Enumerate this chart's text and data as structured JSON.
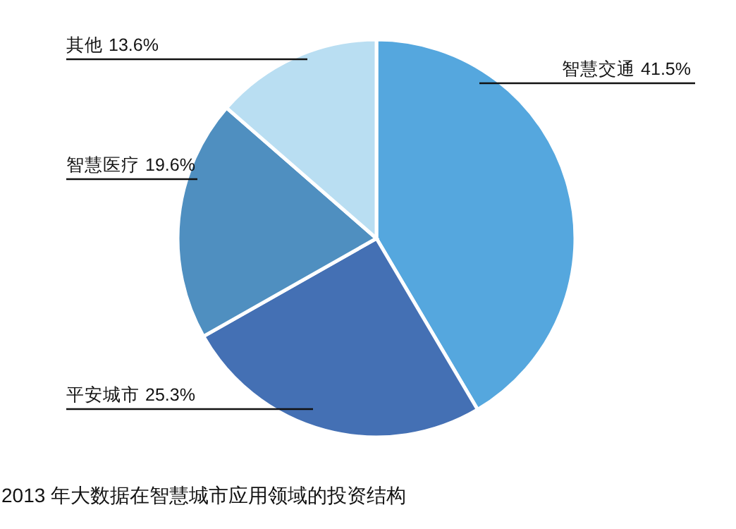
{
  "chart_data": {
    "type": "pie",
    "title": "2013 年大数据在智慧城市应用领域的投资结构",
    "categories": [
      "智慧交通",
      "平安城市",
      "智慧医疗",
      "其他"
    ],
    "values": [
      41.5,
      25.3,
      19.6,
      13.6
    ],
    "colors": [
      "#55a7de",
      "#4470b4",
      "#4f8fc0",
      "#b9def2"
    ],
    "value_labels": [
      "41.5%",
      "25.3%",
      "19.6%",
      "13.6%"
    ]
  }
}
